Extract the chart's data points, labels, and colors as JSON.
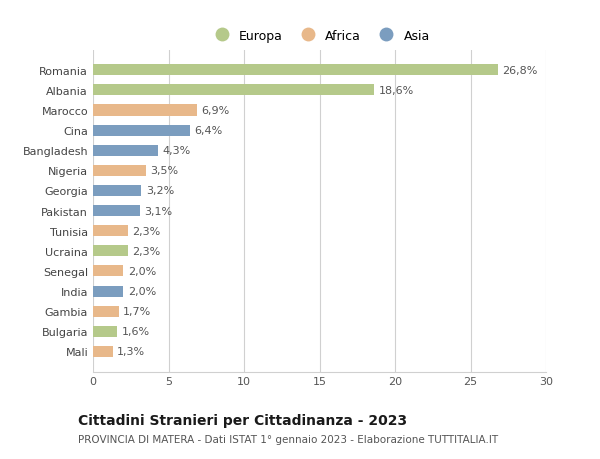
{
  "categories": [
    "Romania",
    "Albania",
    "Marocco",
    "Cina",
    "Bangladesh",
    "Nigeria",
    "Georgia",
    "Pakistan",
    "Tunisia",
    "Ucraina",
    "Senegal",
    "India",
    "Gambia",
    "Bulgaria",
    "Mali"
  ],
  "values": [
    26.8,
    18.6,
    6.9,
    6.4,
    4.3,
    3.5,
    3.2,
    3.1,
    2.3,
    2.3,
    2.0,
    2.0,
    1.7,
    1.6,
    1.3
  ],
  "labels": [
    "26,8%",
    "18,6%",
    "6,9%",
    "6,4%",
    "4,3%",
    "3,5%",
    "3,2%",
    "3,1%",
    "2,3%",
    "2,3%",
    "2,0%",
    "2,0%",
    "1,7%",
    "1,6%",
    "1,3%"
  ],
  "continents": [
    "Europa",
    "Europa",
    "Africa",
    "Asia",
    "Asia",
    "Africa",
    "Asia",
    "Asia",
    "Africa",
    "Europa",
    "Africa",
    "Asia",
    "Africa",
    "Europa",
    "Africa"
  ],
  "colors": {
    "Europa": "#b5c98a",
    "Africa": "#e8b88a",
    "Asia": "#7b9dbf"
  },
  "legend_order": [
    "Europa",
    "Africa",
    "Asia"
  ],
  "xlim": [
    0,
    30
  ],
  "xticks": [
    0,
    5,
    10,
    15,
    20,
    25,
    30
  ],
  "title": "Cittadini Stranieri per Cittadinanza - 2023",
  "subtitle": "PROVINCIA DI MATERA - Dati ISTAT 1° gennaio 2023 - Elaborazione TUTTITALIA.IT",
  "background_color": "#ffffff",
  "grid_color": "#d0d0d0",
  "bar_height": 0.55,
  "label_fontsize": 8,
  "tick_fontsize": 8,
  "title_fontsize": 10,
  "subtitle_fontsize": 7.5
}
